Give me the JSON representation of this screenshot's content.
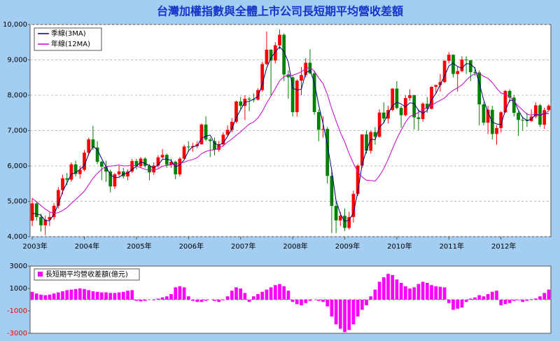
{
  "chart_data": [
    {
      "type": "candlestick",
      "title": "台灣加權指數與全體上市公司長短期平均營收差額",
      "categories": [
        "2003年",
        null,
        null,
        null,
        null,
        null,
        null,
        null,
        null,
        null,
        null,
        null,
        "2004年",
        null,
        null,
        null,
        null,
        null,
        null,
        null,
        null,
        null,
        null,
        null,
        "2005年",
        null,
        null,
        null,
        null,
        null,
        null,
        null,
        null,
        null,
        null,
        null,
        "2006年",
        null,
        null,
        null,
        null,
        null,
        null,
        null,
        null,
        null,
        null,
        null,
        "2007年",
        null,
        null,
        null,
        null,
        null,
        null,
        null,
        null,
        null,
        null,
        null,
        "2008年",
        null,
        null,
        null,
        null,
        null,
        null,
        null,
        null,
        null,
        null,
        null,
        "2009年",
        null,
        null,
        null,
        null,
        null,
        null,
        null,
        null,
        null,
        null,
        null,
        "2010年",
        null,
        null,
        null,
        null,
        null,
        null,
        null,
        null,
        null,
        null,
        null,
        "2011年",
        null,
        null,
        null,
        null,
        null,
        null,
        null,
        null,
        null,
        null,
        null,
        "2012年",
        null,
        null,
        null,
        null,
        null,
        null,
        null,
        null,
        null,
        null,
        null
      ],
      "open": [
        4452,
        4941,
        4555,
        4321,
        4480,
        4556,
        4872,
        5318,
        5650,
        5611,
        6045,
        5771,
        5890,
        6375,
        6750,
        6522,
        6117,
        5977,
        5840,
        5420,
        5765,
        5845,
        5706,
        5845,
        6140,
        5994,
        6207,
        6005,
        5819,
        6012,
        6242,
        6312,
        6033,
        6118,
        5764,
        6204,
        6548,
        6532,
        6562,
        6613,
        7171,
        6747,
        6704,
        6455,
        6611,
        6883,
        7021,
        7248,
        7823,
        7699,
        7901,
        7884,
        7875,
        8145,
        8883,
        9287,
        8982,
        9411,
        9711,
        8586,
        8506,
        7521,
        8412,
        8572,
        8919,
        8619,
        7523,
        7024,
        7046,
        5719,
        4870,
        4460,
        4591,
        4248,
        4557,
        5210,
        6010,
        6890,
        6432,
        6958,
        6826,
        7509,
        7340,
        7582,
        8188,
        7640,
        7436,
        7920,
        8004,
        7374,
        7329,
        7760,
        7616,
        8238,
        8287,
        8372,
        8973,
        9145,
        8600,
        8683,
        9008,
        8988,
        8653,
        8644,
        7741,
        7225,
        7588,
        6904,
        7072,
        7517,
        8121,
        7933,
        7501,
        7301,
        7296,
        7270,
        7397,
        7715,
        7166,
        7580
      ],
      "high": [
        5090,
        5000,
        4650,
        4600,
        4700,
        4950,
        5400,
        5750,
        5800,
        6100,
        6150,
        6000,
        6450,
        6800,
        7135,
        6700,
        6150,
        6150,
        5900,
        5800,
        6000,
        5950,
        5900,
        6200,
        6200,
        6250,
        6250,
        6050,
        6100,
        6300,
        6480,
        6350,
        6200,
        6150,
        6250,
        6600,
        6700,
        6650,
        6700,
        7200,
        7400,
        6800,
        6800,
        6700,
        6950,
        7150,
        7350,
        7850,
        7950,
        8000,
        7950,
        8050,
        8200,
        8950,
        9800,
        9300,
        9500,
        9860,
        9750,
        8700,
        8550,
        8450,
        8800,
        9050,
        9300,
        8700,
        7600,
        7400,
        7100,
        5900,
        5000,
        4700,
        4800,
        4700,
        5300,
        6050,
        6900,
        7000,
        7000,
        7100,
        7600,
        7800,
        7700,
        8200,
        8400,
        7700,
        8000,
        8170,
        8000,
        7600,
        7800,
        7950,
        8250,
        8300,
        8600,
        9000,
        9220,
        9150,
        8800,
        9100,
        9100,
        9000,
        8800,
        8700,
        7800,
        7700,
        7700,
        7150,
        7550,
        8150,
        8170,
        8000,
        7550,
        7400,
        7500,
        7600,
        7800,
        7750,
        7650,
        7750
      ],
      "low": [
        4300,
        4450,
        4140,
        4044,
        4300,
        4480,
        4800,
        5200,
        5450,
        5550,
        5700,
        5650,
        5850,
        6300,
        6450,
        6050,
        5600,
        5550,
        5255,
        5350,
        5700,
        5650,
        5600,
        5800,
        5900,
        5950,
        5950,
        5600,
        5750,
        5950,
        6200,
        5950,
        5950,
        5620,
        5700,
        6200,
        6400,
        6400,
        6500,
        6600,
        6700,
        6250,
        6300,
        6400,
        6550,
        6850,
        6950,
        7200,
        7600,
        7300,
        7550,
        7800,
        7850,
        8100,
        8850,
        8000,
        8900,
        9300,
        8400,
        7900,
        7400,
        7400,
        8000,
        8500,
        8600,
        7450,
        6700,
        6800,
        5500,
        4100,
        4100,
        4300,
        4160,
        4200,
        4400,
        5150,
        5950,
        6350,
        6350,
        6600,
        6800,
        7200,
        7200,
        7550,
        7600,
        7080,
        7400,
        7850,
        7030,
        7000,
        7250,
        7500,
        7600,
        8050,
        8100,
        8350,
        8900,
        8500,
        8100,
        8650,
        8600,
        8400,
        8550,
        7150,
        7150,
        6900,
        6750,
        6600,
        6950,
        7500,
        7800,
        7400,
        6850,
        7000,
        7100,
        7250,
        7350,
        7100,
        7050,
        7550
      ],
      "close": [
        4941,
        4555,
        4321,
        4480,
        4556,
        4872,
        5318,
        5650,
        5611,
        6045,
        5771,
        5890,
        6375,
        6750,
        6522,
        6117,
        5977,
        5840,
        5420,
        5765,
        5845,
        5706,
        5845,
        6140,
        5994,
        6207,
        6005,
        5819,
        6012,
        6242,
        6312,
        6033,
        6118,
        5764,
        6204,
        6548,
        6532,
        6562,
        6613,
        7171,
        6747,
        6704,
        6455,
        6611,
        6883,
        7021,
        7248,
        7823,
        7699,
        7901,
        7884,
        7875,
        8145,
        8883,
        9287,
        8982,
        9411,
        9711,
        8586,
        8506,
        7521,
        8412,
        8572,
        8919,
        8619,
        7523,
        7024,
        7046,
        5719,
        4870,
        4460,
        4591,
        4248,
        4557,
        5210,
        6010,
        6890,
        6432,
        6958,
        6826,
        7509,
        7340,
        7582,
        8188,
        7640,
        7436,
        7920,
        8004,
        7374,
        7329,
        7760,
        7616,
        8238,
        8287,
        8372,
        8973,
        9145,
        8600,
        8683,
        9008,
        8988,
        8653,
        8644,
        7741,
        7225,
        7588,
        6904,
        7072,
        7517,
        8121,
        7933,
        7501,
        7301,
        7296,
        7270,
        7397,
        7715,
        7166,
        7580,
        7700
      ],
      "up_color": "#ff0000",
      "down_color": "#008000",
      "series": [
        {
          "name": "季線(3MA)",
          "color": "#000080",
          "values": [
            4660,
            4649,
            4606,
            4452,
            4452,
            4636,
            4915,
            5280,
            5526,
            5769,
            5809,
            5902,
            6012,
            6338,
            6549,
            6463,
            6205,
            5978,
            5746,
            5675,
            5677,
            5772,
            5799,
            5897,
            5993,
            6114,
            6069,
            6010,
            5945,
            6024,
            6189,
            6196,
            6154,
            5972,
            6029,
            6172,
            6428,
            6547,
            6569,
            6782,
            6844,
            6874,
            6635,
            6590,
            6650,
            6838,
            7051,
            7364,
            7590,
            7808,
            7828,
            7887,
            7968,
            8301,
            8772,
            9051,
            9227,
            9368,
            9236,
            8934,
            8204,
            8146,
            8168,
            8634,
            8703,
            8354,
            7722,
            7198,
            6596,
            5878,
            5016,
            4640,
            4433,
            4465,
            4672,
            5259,
            6037,
            6444,
            6760,
            6739,
            7098,
            7225,
            7477,
            7703,
            7803,
            7755,
            7665,
            7787,
            7766,
            7569,
            7488,
            7568,
            7871,
            8047,
            8299,
            8544,
            8830,
            8906,
            8809,
            8764,
            8893,
            8883,
            8762,
            8346,
            7870,
            7518,
            7239,
            7188,
            7164,
            7570,
            7857,
            7852,
            7578,
            7366,
            7289,
            7321,
            7461,
            7426,
            7487,
            7482
          ]
        },
        {
          "name": "年線(12MA)",
          "color": "#cc00cc",
          "values": [
            5080,
            4990,
            4880,
            4780,
            4700,
            4660,
            4680,
            4740,
            4820,
            4940,
            5050,
            5168,
            5288,
            5471,
            5654,
            5790,
            5908,
            5989,
            5998,
            6008,
            6028,
            6000,
            6006,
            6027,
            5995,
            5950,
            5907,
            5882,
            5885,
            5919,
            5993,
            6015,
            6038,
            6043,
            6073,
            6107,
            6152,
            6182,
            6233,
            6346,
            6407,
            6446,
            6458,
            6506,
            6570,
            6675,
            6762,
            6868,
            6965,
            7077,
            7183,
            7242,
            7359,
            7541,
            7777,
            7975,
            8186,
            8410,
            8522,
            8579,
            8564,
            8607,
            8664,
            8751,
            8791,
            8678,
            8489,
            8328,
            8020,
            7617,
            7273,
            6947,
            6674,
            6353,
            6073,
            5831,
            5687,
            5596,
            5590,
            5572,
            5721,
            5927,
            6187,
            6487,
            6770,
            7010,
            7236,
            7402,
            7442,
            7517,
            7584,
            7650,
            7711,
            7790,
            7856,
            7921,
            8046,
            8143,
            8207,
            8291,
            8426,
            8536,
            8610,
            8620,
            8536,
            8478,
            8356,
            8198,
            8062,
            8022,
            7959,
            7833,
            7692,
            7579,
            7464,
            7435,
            7476,
            7441,
            7497,
            7549
          ]
        }
      ],
      "ylim": [
        4000,
        10000
      ],
      "yticks": [
        {
          "value": 4000,
          "label": "4,000"
        },
        {
          "value": 5000,
          "label": "5,000"
        },
        {
          "value": 6000,
          "label": "6,000"
        },
        {
          "value": 7000,
          "label": "7,000"
        },
        {
          "value": 8000,
          "label": "8,000"
        },
        {
          "value": 9000,
          "label": "9,000"
        },
        {
          "value": 10000,
          "label": "10,000"
        }
      ],
      "grid": true
    },
    {
      "type": "bar",
      "series": [
        {
          "name": "長短期平均營收差額(億元)",
          "color": "#ff00ff",
          "values": [
            700,
            550,
            450,
            400,
            450,
            550,
            650,
            750,
            850,
            900,
            950,
            1000,
            950,
            850,
            750,
            700,
            650,
            650,
            600,
            600,
            650,
            700,
            800,
            850,
            -100,
            -150,
            -100,
            0,
            -50,
            100,
            200,
            300,
            500,
            1100,
            1200,
            1100,
            300,
            -100,
            -200,
            -200,
            -100,
            0,
            -100,
            -200,
            -50,
            300,
            800,
            1100,
            1000,
            600,
            -200,
            300,
            500,
            700,
            900,
            1100,
            1300,
            1400,
            1200,
            800,
            -200,
            -400,
            -500,
            -300,
            -100,
            0,
            -100,
            -200,
            -600,
            -1500,
            -2200,
            -2600,
            -2900,
            -2700,
            -2200,
            -1500,
            -900,
            -500,
            300,
            900,
            1600,
            2000,
            2300,
            2200,
            1800,
            1500,
            1200,
            1000,
            1100,
            1400,
            1600,
            1500,
            1300,
            1200,
            1150,
            1100,
            -300,
            -900,
            -800,
            -700,
            -200,
            100,
            200,
            400,
            300,
            500,
            700,
            800,
            -500,
            -400,
            -300,
            -100,
            -50,
            -200,
            -100,
            50,
            100,
            300,
            600,
            900
          ]
        }
      ],
      "ylim": [
        -3000,
        3000
      ],
      "yticks": [
        3000,
        1000,
        -1000,
        -3000
      ],
      "negative_tick_color": "#ff0000"
    }
  ]
}
